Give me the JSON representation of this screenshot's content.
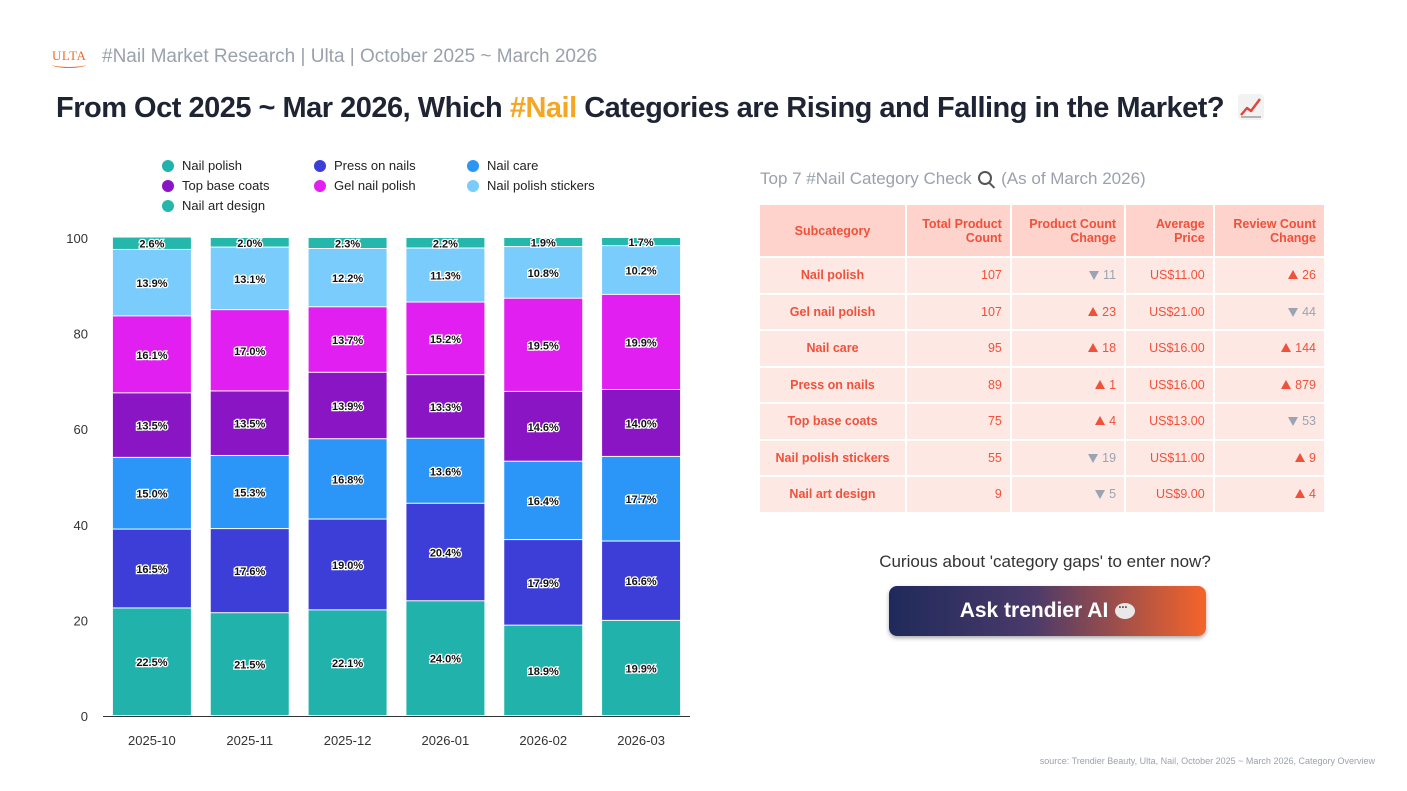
{
  "header": {
    "logo_text": "ULTA",
    "brand_text": "#Nail Market Research | Ulta | October 2025 ~ March 2026",
    "title_before": "From Oct 2025 ~ Mar 2026, Which ",
    "title_highlight": "#Nail",
    "title_after": " Categories are Rising and Falling in the Market?",
    "title_icon": "chart-increasing-icon"
  },
  "chart_data": {
    "type": "bar",
    "stacked": true,
    "categories": [
      "2025-10",
      "2025-11",
      "2025-12",
      "2026-01",
      "2026-02",
      "2026-03"
    ],
    "ylim": [
      0,
      100
    ],
    "yticks": [
      0,
      20,
      40,
      60,
      80,
      100
    ],
    "legend_position": "top",
    "series": [
      {
        "name": "Nail polish",
        "color": "#21b3ab",
        "values": [
          22.5,
          21.5,
          22.1,
          24.0,
          18.9,
          19.9
        ]
      },
      {
        "name": "Press on nails",
        "color": "#3d3ed8",
        "values": [
          16.5,
          17.6,
          19.0,
          20.4,
          17.9,
          16.6
        ]
      },
      {
        "name": "Nail care",
        "color": "#2b96f7",
        "values": [
          15.0,
          15.3,
          16.8,
          13.6,
          16.4,
          17.7
        ]
      },
      {
        "name": "Top base coats",
        "color": "#8a15c4",
        "values": [
          13.5,
          13.5,
          13.9,
          13.3,
          14.6,
          14.0
        ]
      },
      {
        "name": "Gel nail polish",
        "color": "#e01ff0",
        "values": [
          16.1,
          17.0,
          13.7,
          15.2,
          19.5,
          19.9
        ]
      },
      {
        "name": "Nail polish stickers",
        "color": "#79ccfb",
        "values": [
          13.9,
          13.1,
          12.2,
          11.3,
          10.8,
          10.2
        ]
      },
      {
        "name": "Nail art design",
        "color": "#26b7ac",
        "values": [
          2.6,
          2.0,
          2.3,
          2.2,
          1.9,
          1.7
        ]
      }
    ]
  },
  "table": {
    "title": "Top 7 #Nail Category Check",
    "title_suffix": "(As of March 2026)",
    "icon": "magnifier-icon",
    "headers": [
      "Subcategory",
      "Total Product Count",
      "Product Count Change",
      "Average Price",
      "Review Count Change"
    ],
    "rows": [
      {
        "subcategory": "Nail polish",
        "total": "107",
        "pc_dir": "down",
        "pc_change": "11",
        "price": "US$11.00",
        "rc_dir": "up",
        "rc_change": "26"
      },
      {
        "subcategory": "Gel nail polish",
        "total": "107",
        "pc_dir": "up",
        "pc_change": "23",
        "price": "US$21.00",
        "rc_dir": "down",
        "rc_change": "44"
      },
      {
        "subcategory": "Nail care",
        "total": "95",
        "pc_dir": "up",
        "pc_change": "18",
        "price": "US$16.00",
        "rc_dir": "up",
        "rc_change": "144"
      },
      {
        "subcategory": "Press on nails",
        "total": "89",
        "pc_dir": "up",
        "pc_change": "1",
        "price": "US$16.00",
        "rc_dir": "up",
        "rc_change": "879"
      },
      {
        "subcategory": "Top base coats",
        "total": "75",
        "pc_dir": "up",
        "pc_change": "4",
        "price": "US$13.00",
        "rc_dir": "down",
        "rc_change": "53"
      },
      {
        "subcategory": "Nail polish stickers",
        "total": "55",
        "pc_dir": "down",
        "pc_change": "19",
        "price": "US$11.00",
        "rc_dir": "up",
        "rc_change": "9"
      },
      {
        "subcategory": "Nail art design",
        "total": "9",
        "pc_dir": "down",
        "pc_change": "5",
        "price": "US$9.00",
        "rc_dir": "up",
        "rc_change": "4"
      }
    ]
  },
  "cta": {
    "prompt": "Curious about 'category gaps' to enter now?",
    "button_label": "Ask trendier AI",
    "button_icon": "speech-bubble-icon"
  },
  "source": "source: Trendier Beauty, Ulta, Nail, October 2025 ~ March 2026, Category Overview"
}
